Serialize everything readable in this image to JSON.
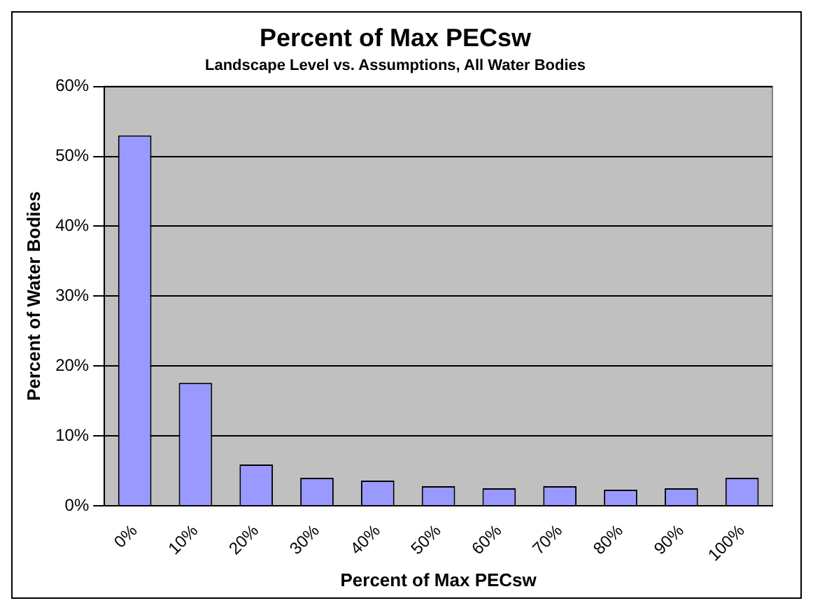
{
  "chart_data": {
    "type": "bar",
    "title": "Percent of Max PECsw",
    "subtitle": "Landscape Level vs. Assumptions, All Water Bodies",
    "xlabel": "Percent of Max PECsw",
    "ylabel": "Percent of Water Bodies",
    "categories": [
      "0%",
      "10%",
      "20%",
      "30%",
      "40%",
      "50%",
      "60%",
      "70%",
      "80%",
      "90%",
      "100%"
    ],
    "values": [
      53,
      17.6,
      5.9,
      4.0,
      3.6,
      2.8,
      2.5,
      2.8,
      2.3,
      2.5,
      4.0
    ],
    "color": "#9999ff",
    "ylim": [
      0,
      60
    ],
    "yticks": [
      {
        "value": 0,
        "label": "0%"
      },
      {
        "value": 10,
        "label": "10%"
      },
      {
        "value": 20,
        "label": "20%"
      },
      {
        "value": 30,
        "label": "30%"
      },
      {
        "value": 40,
        "label": "40%"
      },
      {
        "value": 50,
        "label": "50%"
      },
      {
        "value": 60,
        "label": "60%"
      }
    ],
    "grid": "y",
    "legend": false
  }
}
